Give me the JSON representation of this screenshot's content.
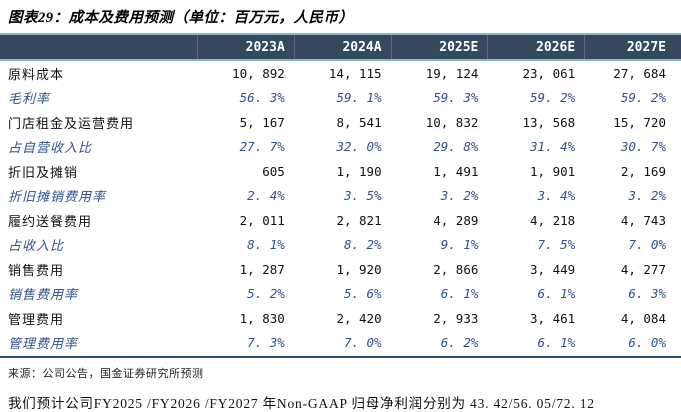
{
  "title": "图表29：成本及费用预测（单位：百万元，人民币）",
  "table": {
    "columns": [
      "2023A",
      "2024A",
      "2025E",
      "2026E",
      "2027E"
    ],
    "rows": [
      {
        "label": "原料成本",
        "type": "normal",
        "values": [
          "10, 892",
          "14, 115",
          "19, 124",
          "23, 061",
          "27, 684"
        ]
      },
      {
        "label": "毛利率",
        "type": "ratio",
        "values": [
          "56. 3%",
          "59. 1%",
          "59. 3%",
          "59. 2%",
          "59. 2%"
        ]
      },
      {
        "label": "门店租金及运营费用",
        "type": "normal",
        "values": [
          "5, 167",
          "8, 541",
          "10, 832",
          "13, 568",
          "15, 720"
        ]
      },
      {
        "label": "占自营收入比",
        "type": "ratio",
        "values": [
          "27. 7%",
          "32. 0%",
          "29. 8%",
          "31. 4%",
          "30. 7%"
        ]
      },
      {
        "label": "折旧及摊销",
        "type": "normal",
        "values": [
          "605",
          "1, 190",
          "1, 491",
          "1, 901",
          "2, 169"
        ]
      },
      {
        "label": "折旧摊销费用率",
        "type": "ratio",
        "values": [
          "2. 4%",
          "3. 5%",
          "3. 2%",
          "3. 4%",
          "3. 2%"
        ]
      },
      {
        "label": "履约送餐费用",
        "type": "normal",
        "values": [
          "2, 011",
          "2, 821",
          "4, 289",
          "4, 218",
          "4, 743"
        ]
      },
      {
        "label": "占收入比",
        "type": "ratio",
        "values": [
          "8. 1%",
          "8. 2%",
          "9. 1%",
          "7. 5%",
          "7. 0%"
        ]
      },
      {
        "label": "销售费用",
        "type": "normal",
        "values": [
          "1, 287",
          "1, 920",
          "2, 866",
          "3, 449",
          "4, 277"
        ]
      },
      {
        "label": "销售费用率",
        "type": "ratio",
        "values": [
          "5. 2%",
          "5. 6%",
          "6. 1%",
          "6. 1%",
          "6. 3%"
        ]
      },
      {
        "label": "管理费用",
        "type": "normal",
        "values": [
          "1, 830",
          "2, 420",
          "2, 933",
          "3, 461",
          "4, 084"
        ]
      },
      {
        "label": "管理费用率",
        "type": "ratio",
        "values": [
          "7. 3%",
          "7. 0%",
          "6. 2%",
          "6. 1%",
          "6. 0%"
        ]
      }
    ]
  },
  "source_note": "来源：公司公告，国金证券研究所预测",
  "following_text": "我们预计公司FY2025 /FY2026 /FY2027 年Non-GAAP 归母净利润分别为 43. 42/56. 05/72. 12",
  "colors": {
    "header_bg": "#34495E",
    "header_border": "#8FB3CE",
    "ratio_text": "#31508E",
    "table_bottom_rule": "#2A4B7C"
  }
}
